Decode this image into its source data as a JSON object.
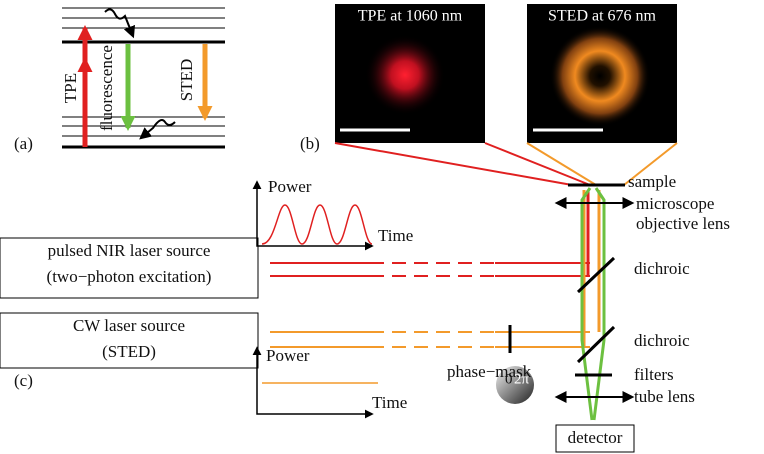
{
  "panel_a": {
    "label": "(a)",
    "tpe": "TPE",
    "fluorescence": "fluorescence",
    "sted": "STED"
  },
  "panel_b": {
    "label": "(b)",
    "image_1_title": "TPE at 1060 nm",
    "image_2_title": "STED at 676 nm"
  },
  "panel_c": {
    "label": "(c)",
    "pulse_plot": {
      "y_label": "Power",
      "x_label": "Time"
    },
    "cw_plot": {
      "y_label": "Power",
      "x_label": "Time"
    },
    "pulsed_source": {
      "line_1": "pulsed NIR laser source",
      "line_2": "(two−photon excitation)"
    },
    "cw_source": {
      "line_1": "CW laser source",
      "line_2": "(STED)"
    },
    "sample": "sample",
    "objective": {
      "line_1": "microscope",
      "line_2": "objective lens"
    },
    "dichroic_1": "dichroic",
    "dichroic_2": "dichroic",
    "phase_mask": "phase−mask",
    "phase_scale": {
      "start": "0",
      "end": "2π"
    },
    "filters": "filters",
    "tube_lens": "tube lens",
    "detector": "detector"
  }
}
